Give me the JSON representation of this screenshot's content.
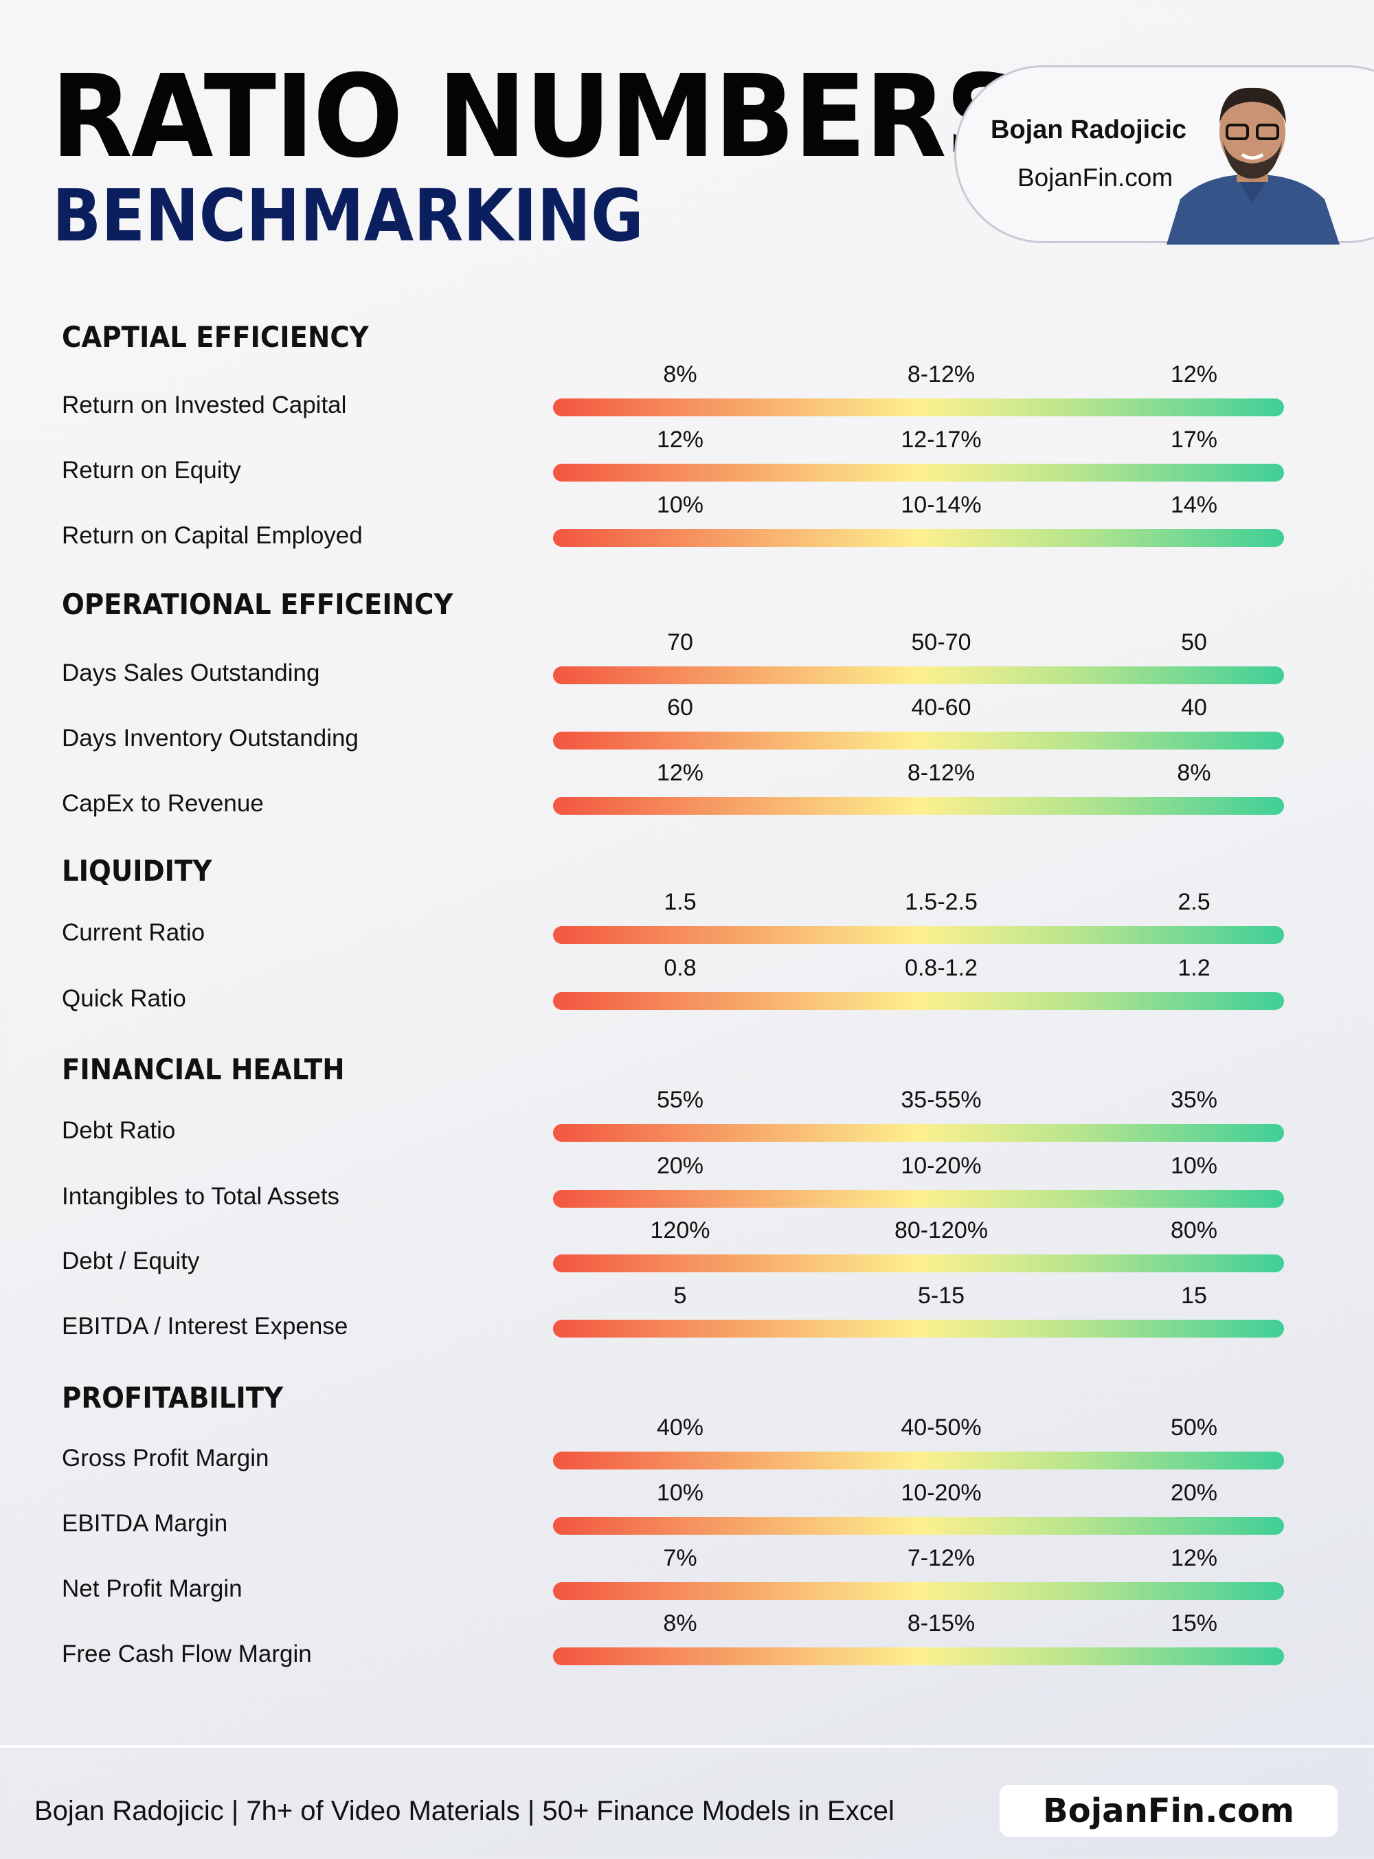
{
  "header": {
    "title": "RATIO NUMBERS",
    "subtitle": "BENCHMARKING"
  },
  "author_card": {
    "name": "Bojan Radojicic",
    "website": "BojanFin.com",
    "photo": "author-portrait"
  },
  "bar_colors": {
    "low": "#f35640",
    "mid": "#fdf08f",
    "high": "#3fcf97"
  },
  "sections": [
    {
      "title": "CAPTIAL EFFICIENCY",
      "rows": [
        {
          "label": "Return on Invested Capital",
          "low": "8%",
          "mid": "8-12%",
          "high": "12%"
        },
        {
          "label": "Return on Equity",
          "low": "12%",
          "mid": "12-17%",
          "high": "17%"
        },
        {
          "label": "Return on Capital Employed",
          "low": "10%",
          "mid": "10-14%",
          "high": "14%"
        }
      ]
    },
    {
      "title": "OPERATIONAL EFFICEINCY",
      "rows": [
        {
          "label": "Days Sales Outstanding",
          "low": "70",
          "mid": "50-70",
          "high": "50"
        },
        {
          "label": "Days Inventory Outstanding",
          "low": "60",
          "mid": "40-60",
          "high": "40"
        },
        {
          "label": "CapEx to Revenue",
          "low": "12%",
          "mid": "8-12%",
          "high": "8%"
        }
      ]
    },
    {
      "title": "LIQUIDITY",
      "rows": [
        {
          "label": "Current Ratio",
          "low": "1.5",
          "mid": "1.5-2.5",
          "high": "2.5"
        },
        {
          "label": "Quick Ratio",
          "low": "0.8",
          "mid": "0.8-1.2",
          "high": "1.2"
        }
      ]
    },
    {
      "title": "FINANCIAL HEALTH",
      "rows": [
        {
          "label": "Debt Ratio",
          "low": "55%",
          "mid": "35-55%",
          "high": "35%"
        },
        {
          "label": "Intangibles to Total Assets",
          "low": "20%",
          "mid": "10-20%",
          "high": "10%"
        },
        {
          "label": "Debt / Equity",
          "low": "120%",
          "mid": "80-120%",
          "high": "80%"
        },
        {
          "label": "EBITDA / Interest Expense",
          "low": "5",
          "mid": "5-15",
          "high": "15"
        }
      ]
    },
    {
      "title": "PROFITABILITY",
      "rows": [
        {
          "label": "Gross Profit Margin",
          "low": "40%",
          "mid": "40-50%",
          "high": "50%"
        },
        {
          "label": "EBITDA Margin",
          "low": "10%",
          "mid": "10-20%",
          "high": "20%"
        },
        {
          "label": "Net Profit Margin",
          "low": "7%",
          "mid": "7-12%",
          "high": "12%"
        },
        {
          "label": "Free Cash Flow Margin",
          "low": "8%",
          "mid": "8-15%",
          "high": "15%"
        }
      ]
    }
  ],
  "footer": {
    "text": "Bojan Radojicic | 7h+ of Video Materials | 50+ Finance Models in Excel",
    "site": "BojanFin.com"
  }
}
